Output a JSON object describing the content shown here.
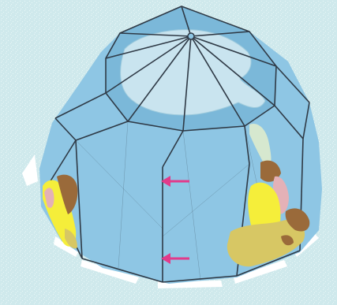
{
  "colors": {
    "background": "#cfe9ec",
    "background_speckle": "#e8f6f6",
    "ocean": "#8ec6e4",
    "ocean_dark": "#7bb8d9",
    "seam": "#2f3a46",
    "fold_edge": "#ffffff",
    "antarctica": "#c9e4ef",
    "antarctica_outline": "#9fcbdd",
    "land_yellow": "#f5ee3a",
    "land_olive": "#d7c764",
    "land_brown": "#9a6a3a",
    "land_pink": "#e4b1b7",
    "land_pale": "#d6e8cf",
    "arrow": "#e23a8a"
  },
  "diagram": {
    "kind": "folded-paper-globe",
    "pole_marker": "small-circle",
    "arrows": [
      {
        "name": "arrow-upper",
        "direction": "left"
      },
      {
        "name": "arrow-lower",
        "direction": "left"
      }
    ]
  }
}
